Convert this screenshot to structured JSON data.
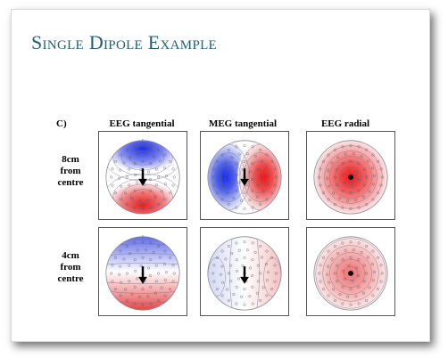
{
  "slide": {
    "title": "Single Dipole Example",
    "panel_label": "C)",
    "columns": [
      "EEG tangential",
      "MEG tangential",
      "EEG radial"
    ],
    "rows": [
      {
        "label": [
          "8cm",
          "from",
          "centre"
        ]
      },
      {
        "label": [
          "4cm",
          "from",
          "centre"
        ]
      }
    ]
  },
  "colors": {
    "title": "#1f5f7a",
    "positive": "#e8282a",
    "negative": "#2a3be0",
    "contour": "#7a7a8a",
    "electrode": "#555566"
  }
}
